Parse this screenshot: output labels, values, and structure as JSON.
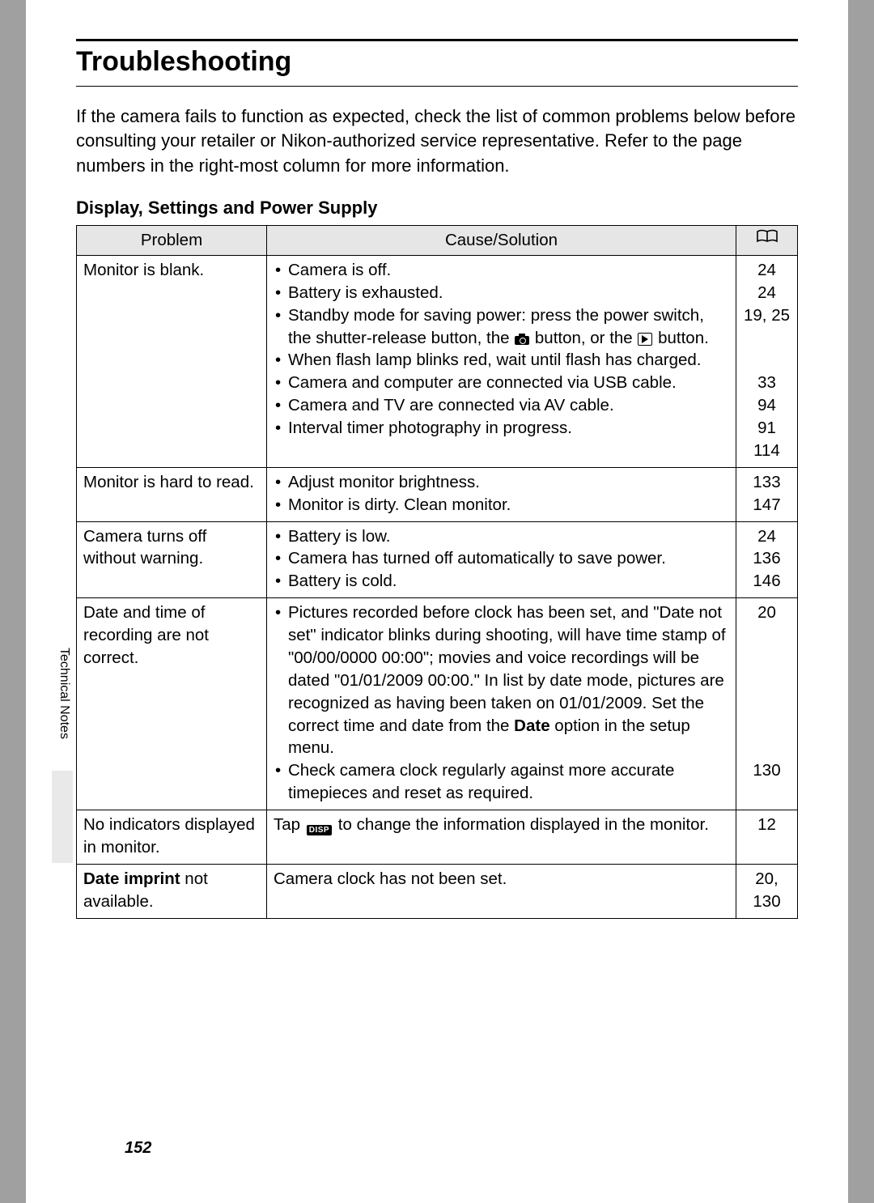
{
  "colors": {
    "page_bg": "#ffffff",
    "outer_bg": "#a0a0a0",
    "header_fill": "#e6e6e6",
    "tab_fill": "#e9e9e9",
    "border": "#000000"
  },
  "title": "Troubleshooting",
  "intro": "If the camera fails to function as expected, check the list of common problems below before consulting your retailer or Nikon-authorized service representative. Refer to the page numbers in the right-most column for more information.",
  "sub": "Display, Settings and Power Supply",
  "table": {
    "headers": {
      "problem": "Problem",
      "cause": "Cause/Solution"
    },
    "rows": [
      {
        "problem": "Monitor is blank.",
        "causes": [
          "Camera is off.",
          "Battery is exhausted.",
          "Standby mode for saving power: press the power switch, the shutter-release button, the {CAM} button, or the {PLAY} button.",
          "When flash lamp blinks red, wait until flash has charged.",
          "Camera and computer are connected via USB cable.",
          "Camera and TV are connected via AV cable.",
          "Interval timer photography in progress."
        ],
        "pages": "24\n24\n19, 25\n\n\n33\n94\n91\n114"
      },
      {
        "problem": "Monitor is hard to read.",
        "causes": [
          "Adjust monitor brightness.",
          "Monitor is dirty. Clean monitor."
        ],
        "pages": "133\n147"
      },
      {
        "problem": "Camera turns off without warning.",
        "causes": [
          "Battery is low.",
          "Camera has turned off automatically to save power.",
          "Battery is cold."
        ],
        "pages": "24\n136\n146"
      },
      {
        "problem": "Date and time of recording are not correct.",
        "causes": [
          "Pictures recorded before clock has been set, and \"Date not set\" indicator blinks during shooting, will have time stamp of \"00/00/0000 00:00\"; movies and voice recordings will be dated \"01/01/2009 00:00.\" In list by date mode, pictures are recognized as having been taken on 01/01/2009. Set the correct time and date from the <b>Date</b> option in the setup menu.",
          "Check camera clock regularly against more accurate timepieces and reset as required."
        ],
        "pages": "20\n\n\n\n\n\n\n130"
      },
      {
        "problem": "No indicators displayed in monitor.",
        "plain": "Tap {DISP} to change the information displayed in the monitor.",
        "pages": "12"
      },
      {
        "problem": "<b>Date imprint</b> not available.",
        "plain": "Camera clock has not been set.",
        "pages": "20,\n130"
      }
    ]
  },
  "sidebar": "Technical Notes",
  "pagenum": "152"
}
